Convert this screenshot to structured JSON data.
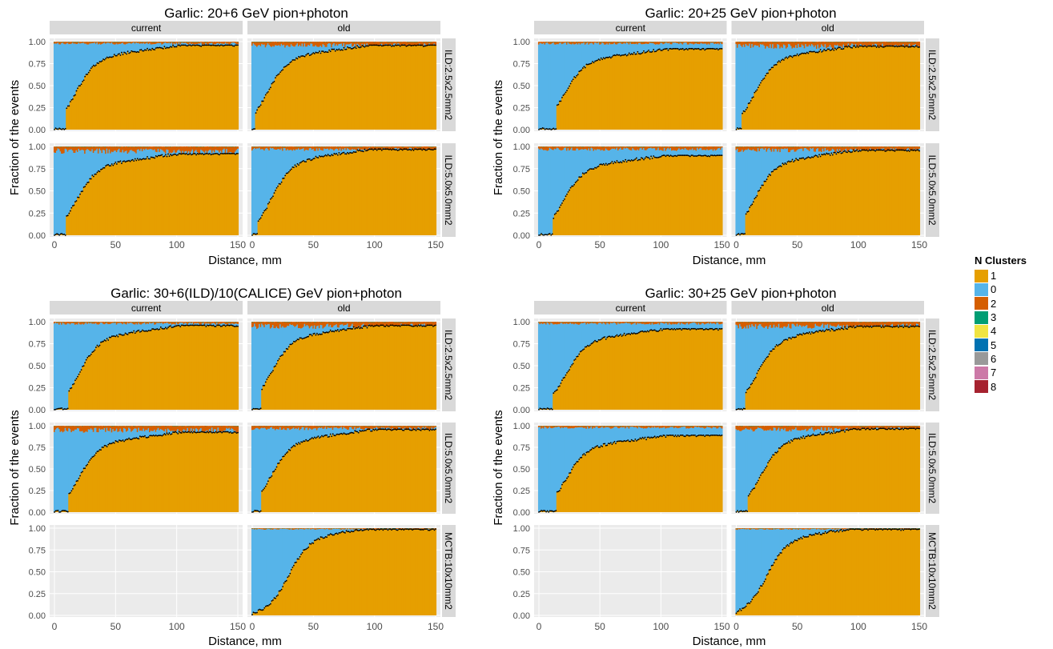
{
  "legend": {
    "title": "N Clusters",
    "items": [
      {
        "label": "1",
        "color": "#E69F00"
      },
      {
        "label": "0",
        "color": "#56B4E9"
      },
      {
        "label": "2",
        "color": "#D55E00"
      },
      {
        "label": "3",
        "color": "#009E73"
      },
      {
        "label": "4",
        "color": "#F0E442"
      },
      {
        "label": "5",
        "color": "#0072B2"
      },
      {
        "label": "6",
        "color": "#999999"
      },
      {
        "label": "7",
        "color": "#CC79A7"
      },
      {
        "label": "8",
        "color": "#A6222F"
      }
    ]
  },
  "chart_data": [
    {
      "type": "bar",
      "title": "Garlic: 20+6 GeV pion+photon",
      "xlabel": "Distance, mm",
      "ylabel": "Fraction of the events",
      "xlim": [
        0,
        150
      ],
      "ylim": [
        0,
        1
      ],
      "x_ticks": [
        "0",
        "50",
        "100",
        "150"
      ],
      "y_ticks": [
        "0.00",
        "0.25",
        "0.50",
        "0.75",
        "1.00"
      ],
      "col_facets": [
        "current",
        "old"
      ],
      "row_facets": [
        "ILD:2.5x2.5mm2",
        "ILD:5.0x5.0mm2"
      ],
      "panels": [
        {
          "column": "current",
          "row": "ILD:2.5x2.5mm2",
          "onset_mm": 10,
          "midpoint_mm": 17,
          "plateau": 0.96,
          "multi_cluster_fraction": 0.02
        },
        {
          "column": "old",
          "row": "ILD:2.5x2.5mm2",
          "onset_mm": 3,
          "midpoint_mm": 12,
          "plateau": 0.96,
          "multi_cluster_fraction": 0.04
        },
        {
          "column": "current",
          "row": "ILD:5.0x5.0mm2",
          "onset_mm": 10,
          "midpoint_mm": 18,
          "plateau": 0.92,
          "multi_cluster_fraction": 0.05
        },
        {
          "column": "old",
          "row": "ILD:5.0x5.0mm2",
          "onset_mm": 5,
          "midpoint_mm": 16,
          "plateau": 0.97,
          "multi_cluster_fraction": 0.03
        }
      ]
    },
    {
      "type": "bar",
      "title": "Garlic: 20+25 GeV pion+photon",
      "xlabel": "Distance, mm",
      "ylabel": "Fraction of the events",
      "xlim": [
        0,
        150
      ],
      "ylim": [
        0,
        1
      ],
      "x_ticks": [
        "0",
        "50",
        "100",
        "150"
      ],
      "y_ticks": [
        "0.00",
        "0.25",
        "0.50",
        "0.75",
        "1.00"
      ],
      "col_facets": [
        "current",
        "old"
      ],
      "row_facets": [
        "ILD:2.5x2.5mm2",
        "ILD:5.0x5.0mm2"
      ],
      "panels": [
        {
          "column": "current",
          "row": "ILD:2.5x2.5mm2",
          "onset_mm": 15,
          "midpoint_mm": 20,
          "plateau": 0.92,
          "multi_cluster_fraction": 0.02
        },
        {
          "column": "old",
          "row": "ILD:2.5x2.5mm2",
          "onset_mm": 5,
          "midpoint_mm": 15,
          "plateau": 0.95,
          "multi_cluster_fraction": 0.05
        },
        {
          "column": "current",
          "row": "ILD:5.0x5.0mm2",
          "onset_mm": 12,
          "midpoint_mm": 20,
          "plateau": 0.9,
          "multi_cluster_fraction": 0.03
        },
        {
          "column": "old",
          "row": "ILD:5.0x5.0mm2",
          "onset_mm": 8,
          "midpoint_mm": 15,
          "plateau": 0.96,
          "multi_cluster_fraction": 0.04
        }
      ]
    },
    {
      "type": "bar",
      "title": "Garlic: 30+6(ILD)/10(CALICE) GeV pion+photon",
      "xlabel": "Distance, mm",
      "ylabel": "Fraction of the events",
      "xlim": [
        0,
        150
      ],
      "ylim": [
        0,
        1
      ],
      "x_ticks": [
        "0",
        "50",
        "100",
        "150"
      ],
      "y_ticks": [
        "0.00",
        "0.25",
        "0.50",
        "0.75",
        "1.00"
      ],
      "col_facets": [
        "current",
        "old"
      ],
      "row_facets": [
        "ILD:2.5x2.5mm2",
        "ILD:5.0x5.0mm2",
        "MCTB:10x10mm2"
      ],
      "panels": [
        {
          "column": "current",
          "row": "ILD:2.5x2.5mm2",
          "onset_mm": 12,
          "midpoint_mm": 20,
          "plateau": 0.96,
          "multi_cluster_fraction": 0.02
        },
        {
          "column": "old",
          "row": "ILD:2.5x2.5mm2",
          "onset_mm": 8,
          "midpoint_mm": 15,
          "plateau": 0.96,
          "multi_cluster_fraction": 0.05
        },
        {
          "column": "current",
          "row": "ILD:5.0x5.0mm2",
          "onset_mm": 12,
          "midpoint_mm": 20,
          "plateau": 0.93,
          "multi_cluster_fraction": 0.05
        },
        {
          "column": "old",
          "row": "ILD:5.0x5.0mm2",
          "onset_mm": 8,
          "midpoint_mm": 15,
          "plateau": 0.96,
          "multi_cluster_fraction": 0.03
        },
        {
          "column": "current",
          "row": "MCTB:10x10mm2",
          "empty": true
        },
        {
          "column": "old",
          "row": "MCTB:10x10mm2",
          "onset_mm": 0,
          "midpoint_mm": 30,
          "plateau": 0.99,
          "multi_cluster_fraction": 0.01
        }
      ]
    },
    {
      "type": "bar",
      "title": "Garlic: 30+25 GeV pion+photon",
      "xlabel": "Distance, mm",
      "ylabel": "Fraction of the events",
      "xlim": [
        0,
        150
      ],
      "ylim": [
        0,
        1
      ],
      "x_ticks": [
        "0",
        "50",
        "100",
        "150"
      ],
      "y_ticks": [
        "0.00",
        "0.25",
        "0.50",
        "0.75",
        "1.00"
      ],
      "col_facets": [
        "current",
        "old"
      ],
      "row_facets": [
        "ILD:2.5x2.5mm2",
        "ILD:5.0x5.0mm2",
        "MCTB:10x10mm2"
      ],
      "panels": [
        {
          "column": "current",
          "row": "ILD:2.5x2.5mm2",
          "onset_mm": 12,
          "midpoint_mm": 22,
          "plateau": 0.92,
          "multi_cluster_fraction": 0.02
        },
        {
          "column": "old",
          "row": "ILD:2.5x2.5mm2",
          "onset_mm": 8,
          "midpoint_mm": 17,
          "plateau": 0.95,
          "multi_cluster_fraction": 0.05
        },
        {
          "column": "current",
          "row": "ILD:5.0x5.0mm2",
          "onset_mm": 15,
          "midpoint_mm": 22,
          "plateau": 0.89,
          "multi_cluster_fraction": 0.02
        },
        {
          "column": "old",
          "row": "ILD:5.0x5.0mm2",
          "onset_mm": 10,
          "midpoint_mm": 20,
          "plateau": 0.97,
          "multi_cluster_fraction": 0.04
        },
        {
          "column": "current",
          "row": "MCTB:10x10mm2",
          "empty": true
        },
        {
          "column": "old",
          "row": "MCTB:10x10mm2",
          "onset_mm": 0,
          "midpoint_mm": 25,
          "plateau": 0.99,
          "multi_cluster_fraction": 0.01
        }
      ]
    }
  ]
}
